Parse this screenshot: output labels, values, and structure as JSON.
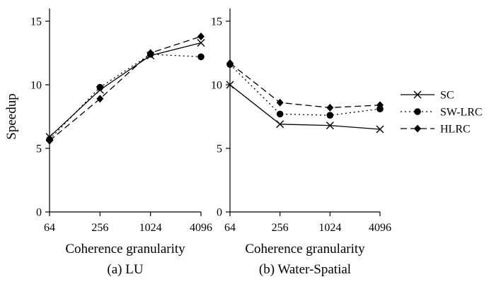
{
  "figure": {
    "ylabel": "Speedup"
  },
  "legend": {
    "entries": [
      {
        "name": "SC",
        "style": "solid",
        "marker": "x"
      },
      {
        "name": "SW-LRC",
        "style": "dotted",
        "marker": "circle"
      },
      {
        "name": "HLRC",
        "style": "dashed",
        "marker": "diamond"
      }
    ],
    "placement": "right"
  },
  "chart_data": [
    {
      "type": "line",
      "caption": "(a) LU",
      "xlabel": "Coherence granularity",
      "ylabel": "Speedup",
      "categories": [
        "64",
        "256",
        "1024",
        "4096"
      ],
      "ylim": [
        0,
        16
      ],
      "yticks": [
        0,
        5,
        10,
        15
      ],
      "grid": false,
      "series": [
        {
          "name": "SC",
          "values": [
            5.9,
            9.6,
            12.3,
            13.3
          ]
        },
        {
          "name": "SW-LRC",
          "values": [
            5.7,
            9.8,
            12.4,
            12.2
          ]
        },
        {
          "name": "HLRC",
          "values": [
            5.6,
            8.9,
            12.5,
            13.8
          ]
        }
      ]
    },
    {
      "type": "line",
      "caption": "(b) Water-Spatial",
      "xlabel": "Coherence granularity",
      "ylabel": "",
      "categories": [
        "64",
        "256",
        "1024",
        "4096"
      ],
      "ylim": [
        0,
        16
      ],
      "yticks": [
        0,
        5,
        10,
        15
      ],
      "grid": false,
      "series": [
        {
          "name": "SC",
          "values": [
            10.0,
            6.9,
            6.8,
            6.5
          ]
        },
        {
          "name": "SW-LRC",
          "values": [
            11.6,
            7.7,
            7.6,
            8.1
          ]
        },
        {
          "name": "HLRC",
          "values": [
            11.7,
            8.6,
            8.2,
            8.4
          ]
        }
      ]
    }
  ]
}
